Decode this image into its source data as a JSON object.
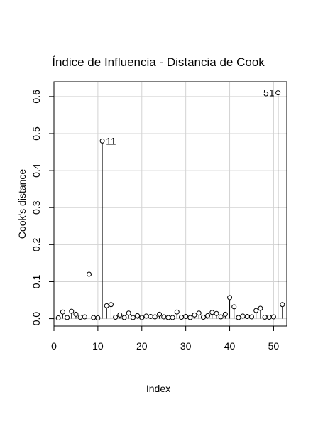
{
  "chart_data": {
    "type": "scatter",
    "title": "Índice de Influencia - Distancia de Cook",
    "xlabel": "Index",
    "ylabel": "Cook's distance",
    "xlim": [
      0,
      53
    ],
    "ylim": [
      -0.02,
      0.64
    ],
    "x_ticks": [
      0,
      10,
      20,
      30,
      40,
      50
    ],
    "y_ticks": [
      0.0,
      0.1,
      0.2,
      0.3,
      0.4,
      0.5,
      0.6
    ],
    "grid": true,
    "style": "lollipop",
    "series": [
      {
        "x": [
          1,
          2,
          3,
          4,
          5,
          6,
          7,
          8,
          9,
          10,
          11,
          12,
          13,
          14,
          15,
          16,
          17,
          18,
          19,
          20,
          21,
          22,
          23,
          24,
          25,
          26,
          27,
          28,
          29,
          30,
          31,
          32,
          33,
          34,
          35,
          36,
          37,
          38,
          39,
          40,
          41,
          42,
          43,
          44,
          45,
          46,
          47,
          48,
          49,
          50,
          51,
          52
        ],
        "y": [
          0.002,
          0.018,
          0.003,
          0.02,
          0.012,
          0.004,
          0.005,
          0.12,
          0.003,
          0.002,
          0.48,
          0.035,
          0.038,
          0.004,
          0.01,
          0.003,
          0.015,
          0.003,
          0.008,
          0.003,
          0.007,
          0.006,
          0.005,
          0.012,
          0.005,
          0.003,
          0.003,
          0.018,
          0.004,
          0.006,
          0.003,
          0.01,
          0.015,
          0.004,
          0.008,
          0.017,
          0.014,
          0.005,
          0.012,
          0.057,
          0.032,
          0.003,
          0.007,
          0.006,
          0.005,
          0.022,
          0.028,
          0.004,
          0.004,
          0.005,
          0.61,
          0.038
        ]
      }
    ],
    "annotations": [
      {
        "index": 11,
        "text": "11",
        "side": "right"
      },
      {
        "index": 51,
        "text": "51",
        "side": "left"
      }
    ]
  }
}
